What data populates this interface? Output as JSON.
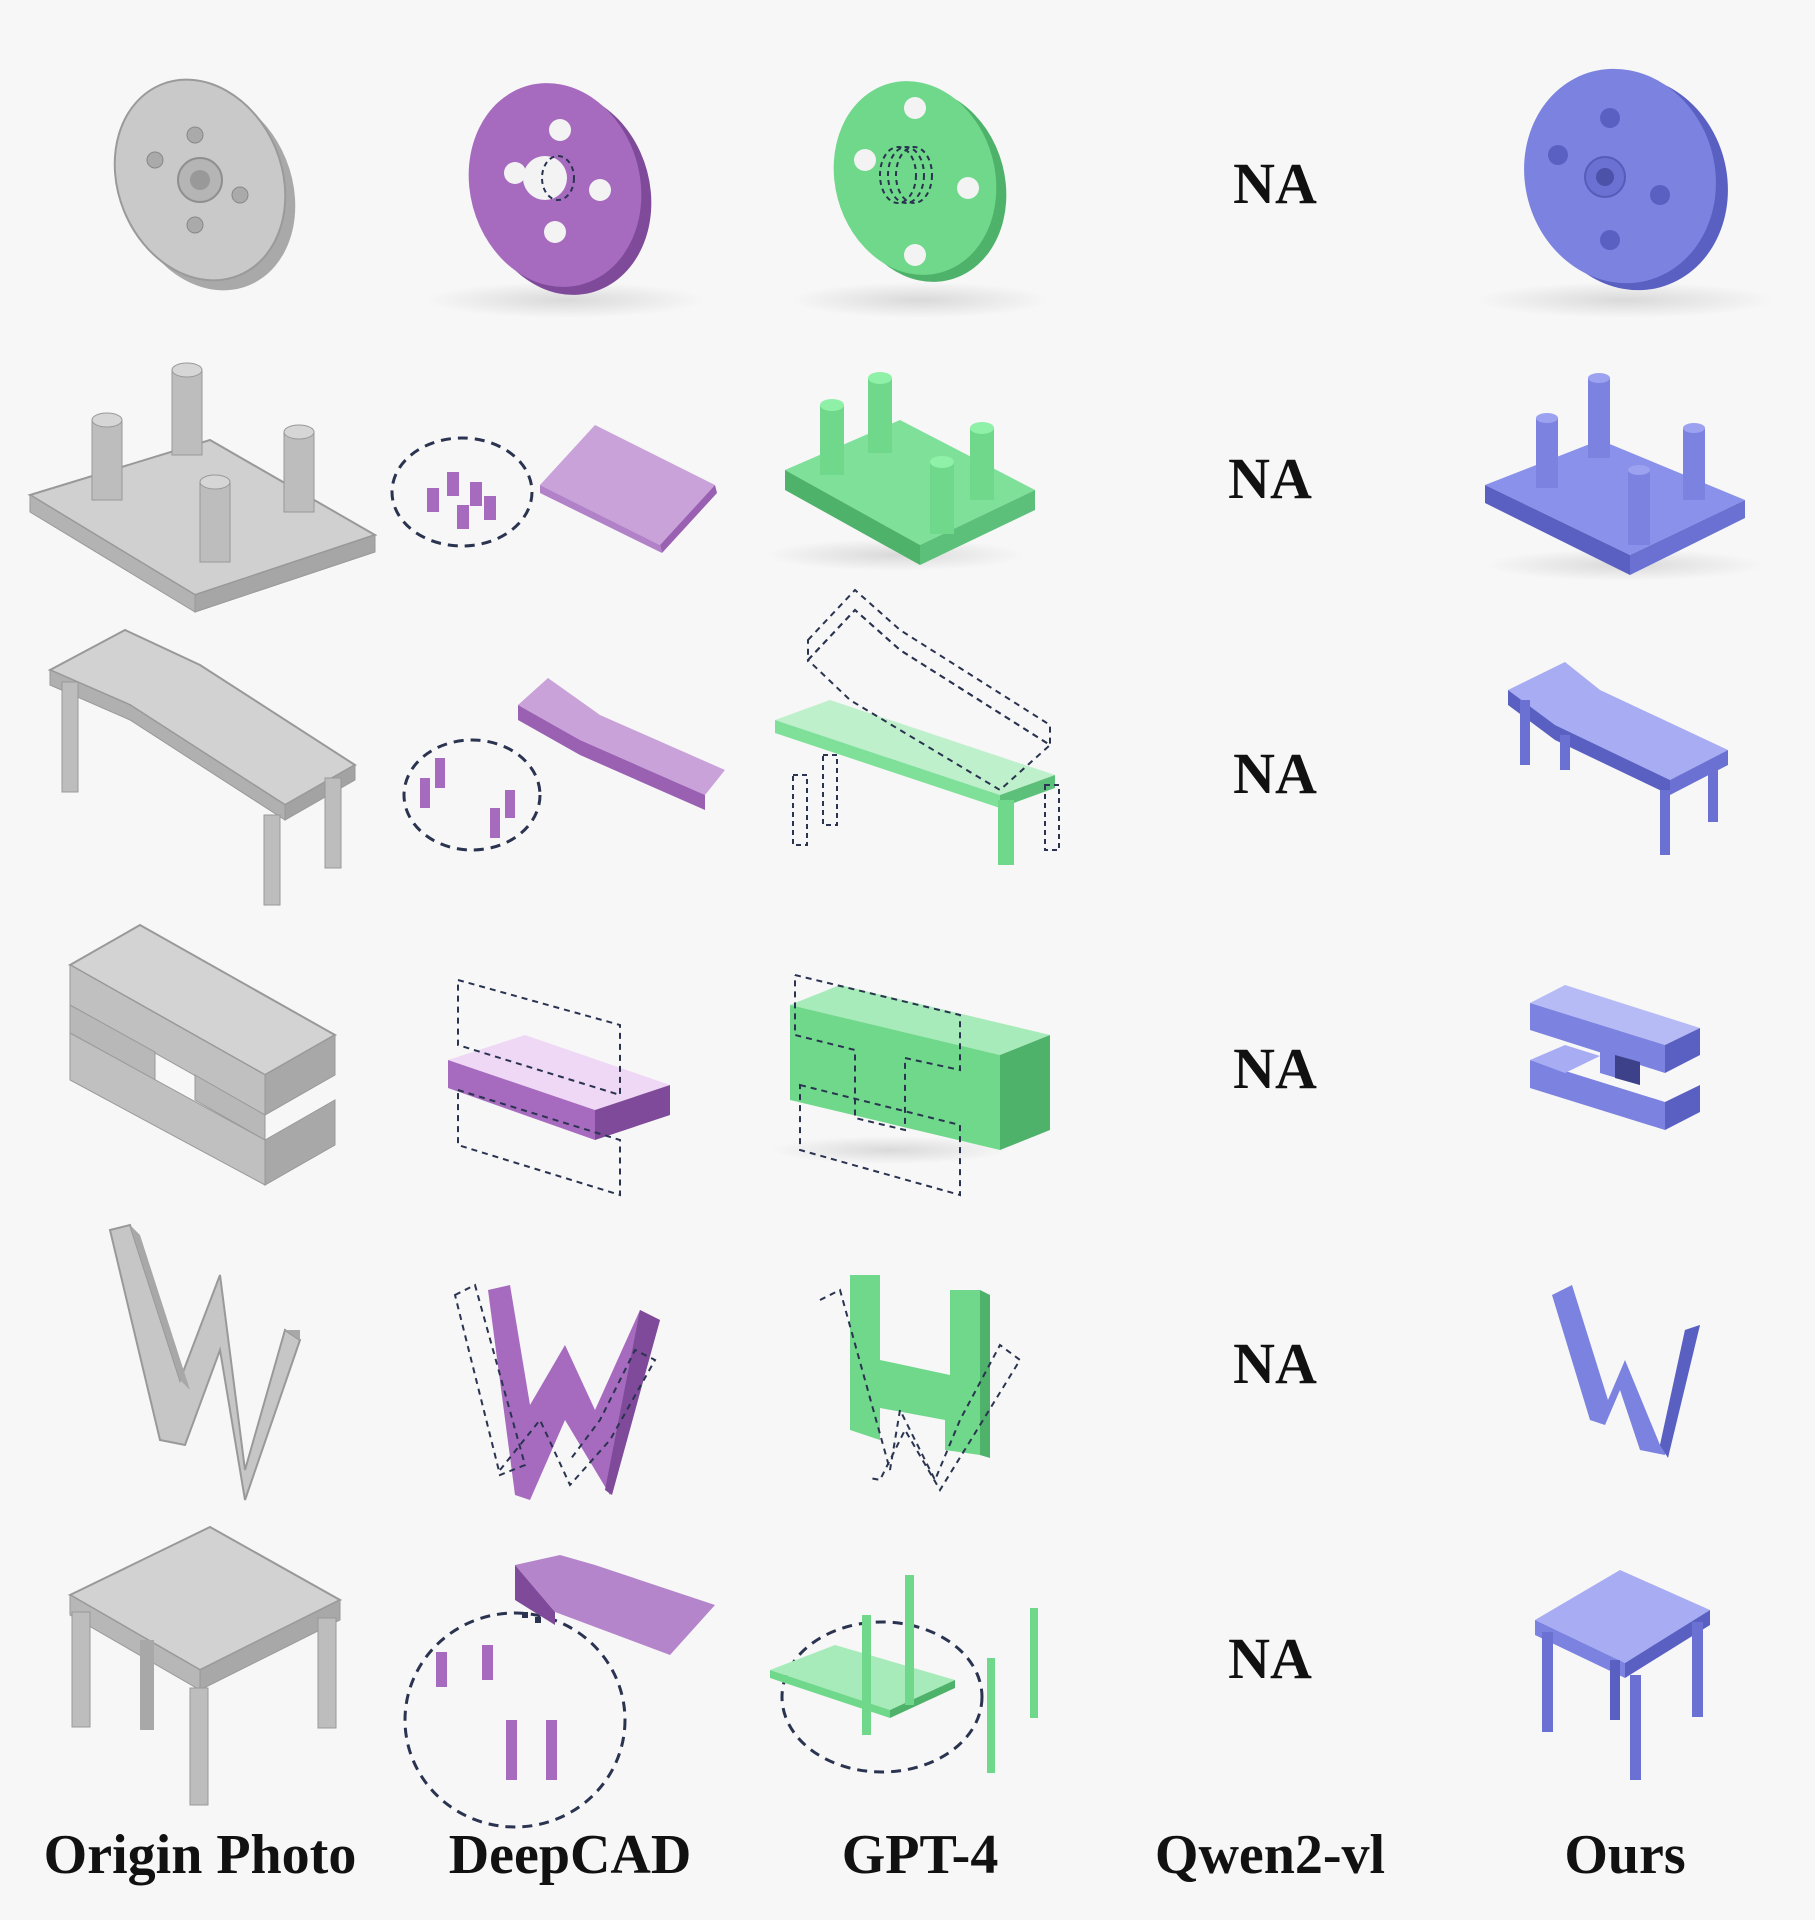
{
  "columns": [
    {
      "label": "Origin Photo"
    },
    {
      "label": "DeepCAD"
    },
    {
      "label": "GPT-4"
    },
    {
      "label": "Qwen2-vl"
    },
    {
      "label": "Ours"
    }
  ],
  "palette": {
    "origin": "#c8c8c8",
    "deepcad": "#a66bbf",
    "gpt4": "#6fd88a",
    "ours": "#7b82e0",
    "dash": "#2a3350",
    "background": "#f7f7f7"
  },
  "rows": [
    {
      "object": "flange-disc",
      "qwen": "NA"
    },
    {
      "object": "plate-with-pegs",
      "qwen": "NA"
    },
    {
      "object": "bench",
      "qwen": "NA"
    },
    {
      "object": "h-block",
      "qwen": "NA"
    },
    {
      "object": "letter-w",
      "qwen": "NA"
    },
    {
      "object": "table",
      "qwen": "NA"
    }
  ]
}
